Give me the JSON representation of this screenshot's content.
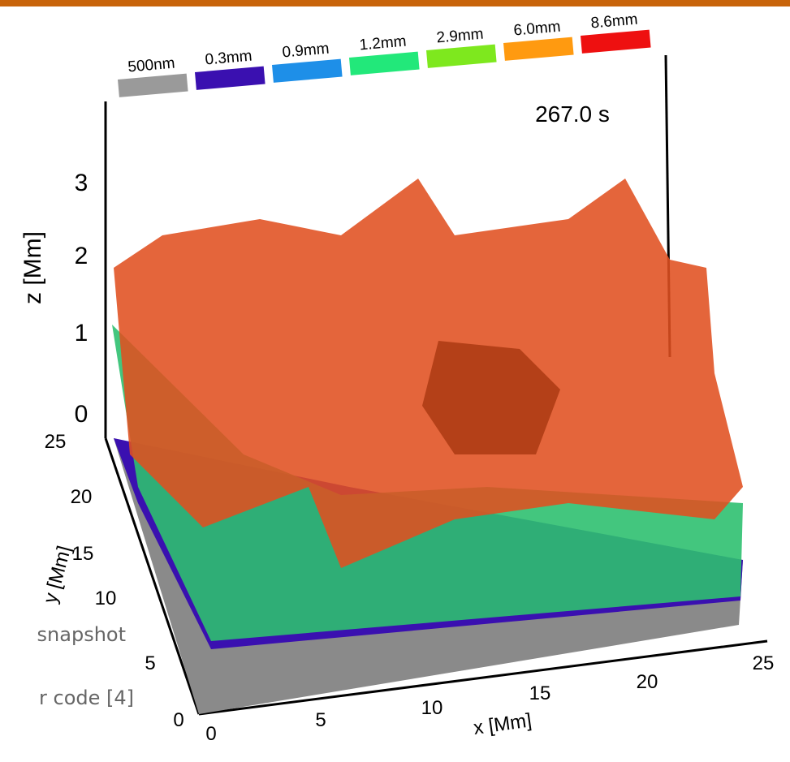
{
  "figure": {
    "legend": [
      "500nm",
      "0.3mm",
      "0.9mm",
      "1.2mm",
      "2.9mm",
      "6.0mm",
      "8.6mm"
    ],
    "legend_colors": [
      "#9a9a9a",
      "#3a10b0",
      "#1e8fe8",
      "#22e87a",
      "#7ee81e",
      "#ff9a10",
      "#ee1010"
    ],
    "time": "267.0 s",
    "z_axis": {
      "label": "z [Mm]",
      "ticks": [
        "0",
        "1",
        "2",
        "3"
      ]
    },
    "y_axis": {
      "label": "y [Mm]",
      "ticks": [
        "0",
        "5",
        "10",
        "15",
        "20",
        "25"
      ]
    },
    "x_axis": {
      "label": "x [Mm]",
      "ticks": [
        "0",
        "5",
        "10",
        "15",
        "20",
        "25"
      ]
    },
    "caption": [
      "snapshot",
      "r code [4]"
    ]
  }
}
